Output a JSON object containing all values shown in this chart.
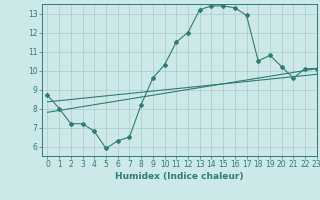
{
  "xlabel": "Humidex (Indice chaleur)",
  "ylabel": "",
  "xlim": [
    -0.5,
    23
  ],
  "ylim": [
    5.5,
    13.5
  ],
  "yticks": [
    6,
    7,
    8,
    9,
    10,
    11,
    12,
    13
  ],
  "xticks": [
    0,
    1,
    2,
    3,
    4,
    5,
    6,
    7,
    8,
    9,
    10,
    11,
    12,
    13,
    14,
    15,
    16,
    17,
    18,
    19,
    20,
    21,
    22,
    23
  ],
  "background_color": "#cce8e8",
  "grid_color": "#aacccc",
  "line_color": "#2e7d72",
  "line1_x": [
    0,
    1,
    2,
    3,
    4,
    5,
    6,
    7,
    8,
    9,
    10,
    11,
    12,
    13,
    14,
    15,
    16,
    17,
    18,
    19,
    20,
    21,
    22,
    23
  ],
  "line1_y": [
    8.7,
    8.0,
    7.2,
    7.2,
    6.8,
    5.9,
    6.3,
    6.5,
    8.2,
    9.6,
    10.3,
    11.5,
    12.0,
    13.2,
    13.4,
    13.4,
    13.3,
    12.9,
    10.5,
    10.8,
    10.2,
    9.6,
    10.1,
    10.1
  ],
  "line2_x": [
    0,
    23
  ],
  "line2_y": [
    7.8,
    10.1
  ],
  "line3_x": [
    0,
    23
  ],
  "line3_y": [
    8.35,
    9.8
  ]
}
